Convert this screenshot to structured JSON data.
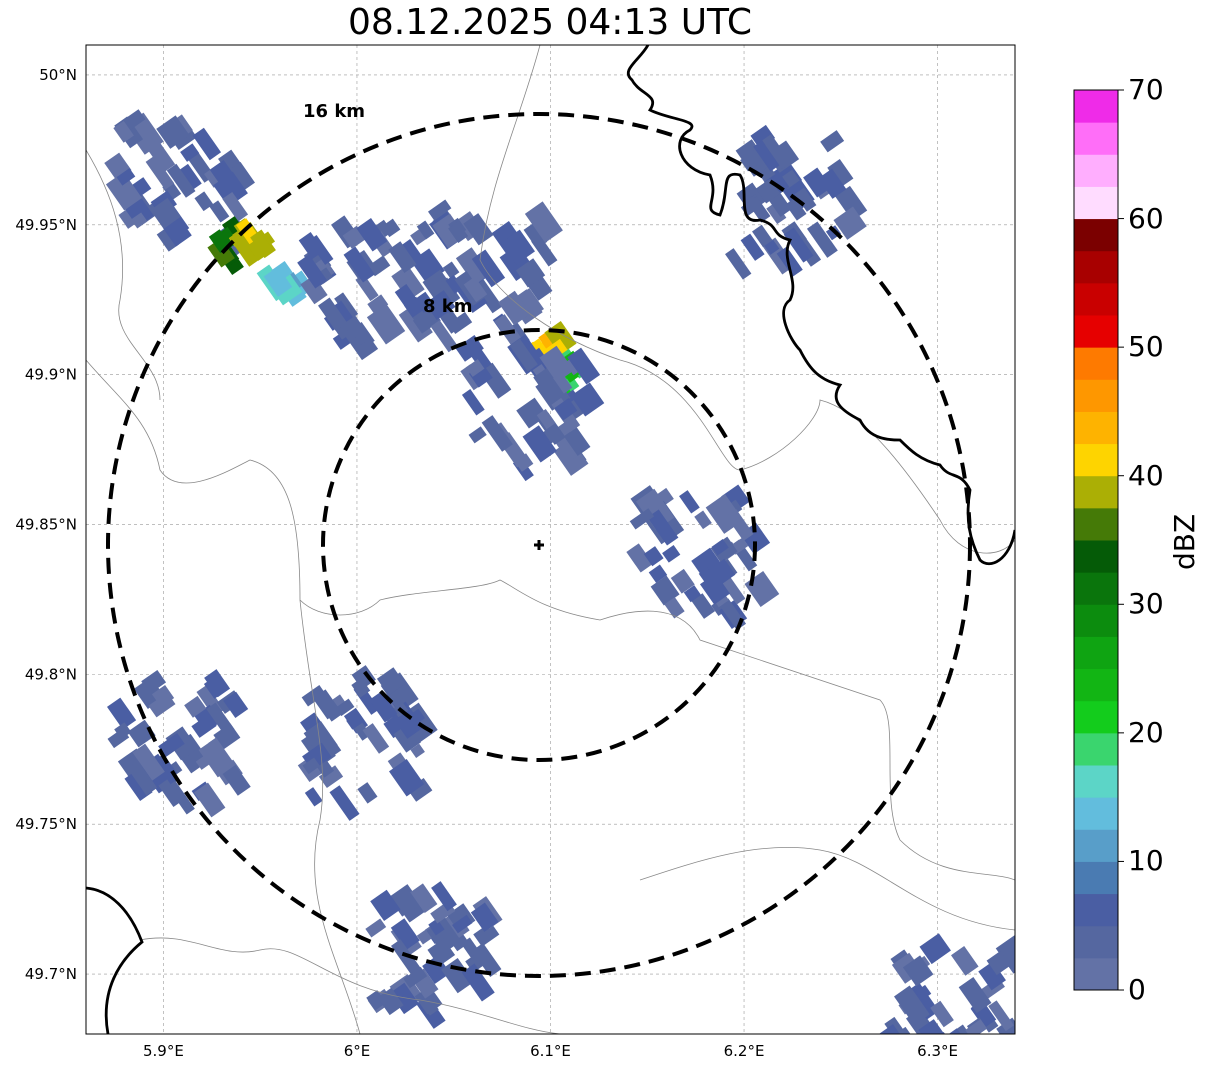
{
  "title": "08.12.2025 04:13 UTC",
  "map": {
    "lon_range": [
      5.86,
      6.34
    ],
    "lat_range": [
      49.68,
      50.01
    ],
    "x_ticks": [
      {
        "value": 5.9,
        "label": "5.9°E"
      },
      {
        "value": 6.0,
        "label": "6°E"
      },
      {
        "value": 6.1,
        "label": "6.1°E"
      },
      {
        "value": 6.2,
        "label": "6.2°E"
      },
      {
        "value": 6.3,
        "label": "6.3°E"
      }
    ],
    "y_ticks": [
      {
        "value": 50.0,
        "label": "50°N"
      },
      {
        "value": 49.95,
        "label": "49.95°N"
      },
      {
        "value": 49.9,
        "label": "49.9°N"
      },
      {
        "value": 49.85,
        "label": "49.85°N"
      },
      {
        "value": 49.8,
        "label": "49.8°N"
      },
      {
        "value": 49.75,
        "label": "49.75°N"
      },
      {
        "value": 49.7,
        "label": "49.7°N"
      }
    ],
    "grid": true,
    "radar_site": {
      "lon": 6.096,
      "lat": 49.843
    },
    "range_rings": [
      {
        "label": "8 km",
        "radius_km": 8
      },
      {
        "label": "16 km",
        "radius_km": 16
      }
    ],
    "precip_cells": [
      {
        "lon": 5.9,
        "lat": 49.965,
        "dbz": 5
      },
      {
        "lon": 5.93,
        "lat": 49.945,
        "dbz": 33
      },
      {
        "lon": 5.94,
        "lat": 49.948,
        "dbz": 40
      },
      {
        "lon": 5.955,
        "lat": 49.93,
        "dbz": 15
      },
      {
        "lon": 6.0,
        "lat": 49.93,
        "dbz": 5
      },
      {
        "lon": 6.06,
        "lat": 49.935,
        "dbz": 5
      },
      {
        "lon": 6.09,
        "lat": 49.91,
        "dbz": 42
      },
      {
        "lon": 6.1,
        "lat": 49.9,
        "dbz": 20
      },
      {
        "lon": 6.08,
        "lat": 49.89,
        "dbz": 5
      },
      {
        "lon": 6.17,
        "lat": 49.84,
        "dbz": 5
      },
      {
        "lon": 6.22,
        "lat": 49.96,
        "dbz": 5
      },
      {
        "lon": 5.9,
        "lat": 49.78,
        "dbz": 5
      },
      {
        "lon": 6.0,
        "lat": 49.78,
        "dbz": 5
      },
      {
        "lon": 6.3,
        "lat": 49.69,
        "dbz": 5
      },
      {
        "lon": 6.03,
        "lat": 49.71,
        "dbz": 5
      }
    ]
  },
  "colorbar": {
    "label": "dBZ",
    "min": 0,
    "max": 70,
    "tick_labels": [
      "0",
      "10",
      "20",
      "30",
      "40",
      "50",
      "60",
      "70"
    ],
    "colors": [
      "#6372a6",
      "#5567a0",
      "#4a5ea3",
      "#4a7bb2",
      "#589ec9",
      "#62bddd",
      "#5cd5c7",
      "#3ad56e",
      "#13cc1c",
      "#12b514",
      "#0fa412",
      "#0c8c0e",
      "#0a750c",
      "#055b07",
      "#457a07",
      "#abaf05",
      "#fed400",
      "#feb300",
      "#fe9700",
      "#fe7a00",
      "#e60000",
      "#c90000",
      "#a80000",
      "#7b0000",
      "#ffdcff",
      "#ffaefe",
      "#ff6ef8",
      "#ef2be8"
    ]
  }
}
